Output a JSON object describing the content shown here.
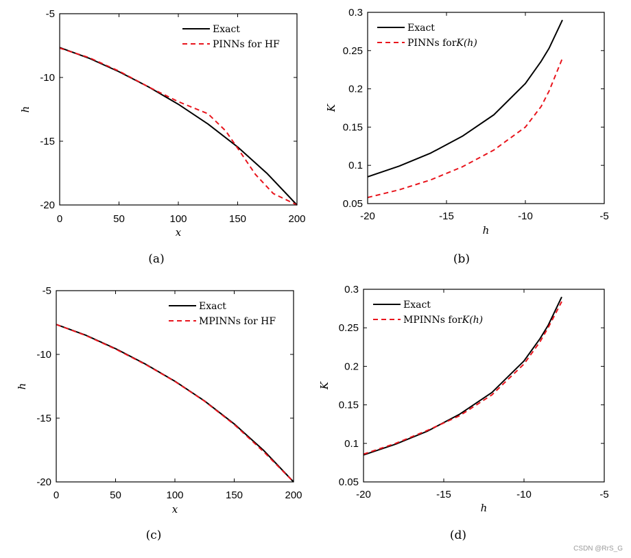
{
  "chart_data": [
    {
      "type": "line",
      "panel_label": "(a)",
      "xlabel": "x",
      "ylabel": "h",
      "xlim": [
        0,
        200
      ],
      "ylim": [
        -20,
        -5
      ],
      "xticks": [
        "0",
        "50",
        "100",
        "150",
        "200"
      ],
      "yticks": [
        "-5",
        "-10",
        "-15",
        "-20"
      ],
      "legend_position": "top-right",
      "series": [
        {
          "name": "Exact",
          "color": "#000000",
          "dash": "solid",
          "x": [
            0,
            25,
            50,
            75,
            100,
            125,
            150,
            175,
            200
          ],
          "y": [
            -7.65,
            -8.5,
            -9.55,
            -10.75,
            -12.1,
            -13.65,
            -15.45,
            -17.55,
            -20.0
          ]
        },
        {
          "name": "PINNs for HF",
          "color": "#e8141c",
          "dash": "dashed",
          "x": [
            0,
            25,
            50,
            75,
            100,
            125,
            140,
            150,
            165,
            180,
            200
          ],
          "y": [
            -7.7,
            -8.45,
            -9.5,
            -10.75,
            -11.9,
            -12.85,
            -14.2,
            -15.55,
            -17.6,
            -19.1,
            -20.0
          ]
        }
      ]
    },
    {
      "type": "line",
      "panel_label": "(b)",
      "xlabel": "h",
      "ylabel": "K",
      "xlim": [
        -20,
        -5
      ],
      "ylim": [
        0.05,
        0.3
      ],
      "xticks": [
        "-20",
        "-15",
        "-10",
        "-5"
      ],
      "yticks": [
        "0.3",
        "0.25",
        "0.2",
        "0.15",
        "0.1",
        "0.05"
      ],
      "legend_position": "top-left",
      "series": [
        {
          "name": "Exact",
          "color": "#000000",
          "dash": "solid",
          "x": [
            -20,
            -18,
            -16,
            -14,
            -12,
            -10,
            -9,
            -8.5,
            -7.65
          ],
          "y": [
            0.085,
            0.099,
            0.116,
            0.138,
            0.166,
            0.207,
            0.236,
            0.253,
            0.29
          ]
        },
        {
          "name": "PINNs for",
          "name_math": "K(h)",
          "color": "#e8141c",
          "dash": "dashed",
          "x": [
            -20,
            -18,
            -16,
            -14,
            -12,
            -10,
            -9,
            -8.5,
            -7.65
          ],
          "y": [
            0.058,
            0.068,
            0.081,
            0.098,
            0.12,
            0.15,
            0.177,
            0.197,
            0.24
          ]
        }
      ]
    },
    {
      "type": "line",
      "panel_label": "(c)",
      "xlabel": "x",
      "ylabel": "h",
      "xlim": [
        0,
        200
      ],
      "ylim": [
        -20,
        -5
      ],
      "xticks": [
        "0",
        "50",
        "100",
        "150",
        "200"
      ],
      "yticks": [
        "-5",
        "-10",
        "-15",
        "-20"
      ],
      "legend_position": "top-right",
      "series": [
        {
          "name": "Exact",
          "color": "#000000",
          "dash": "solid",
          "x": [
            0,
            25,
            50,
            75,
            100,
            125,
            150,
            175,
            200
          ],
          "y": [
            -7.65,
            -8.5,
            -9.55,
            -10.75,
            -12.1,
            -13.65,
            -15.45,
            -17.55,
            -20.0
          ]
        },
        {
          "name": "MPINNs for HF",
          "color": "#e8141c",
          "dash": "dashed",
          "x": [
            0,
            25,
            50,
            75,
            100,
            125,
            150,
            175,
            200
          ],
          "y": [
            -7.65,
            -8.52,
            -9.58,
            -10.78,
            -12.12,
            -13.67,
            -15.5,
            -17.65,
            -20.0
          ]
        }
      ]
    },
    {
      "type": "line",
      "panel_label": "(d)",
      "xlabel": "h",
      "ylabel": "K",
      "xlim": [
        -20,
        -5
      ],
      "ylim": [
        0.05,
        0.3
      ],
      "xticks": [
        "-20",
        "-15",
        "-10",
        "-5"
      ],
      "yticks": [
        "0.3",
        "0.25",
        "0.2",
        "0.15",
        "0.1",
        "0.05"
      ],
      "legend_position": "top-left",
      "series": [
        {
          "name": "Exact",
          "color": "#000000",
          "dash": "solid",
          "x": [
            -20,
            -18,
            -16,
            -14,
            -12,
            -10,
            -9,
            -8.5,
            -7.65
          ],
          "y": [
            0.085,
            0.099,
            0.116,
            0.138,
            0.166,
            0.207,
            0.236,
            0.253,
            0.29
          ]
        },
        {
          "name": "MPINNs for",
          "name_math": "K(h)",
          "color": "#e8141c",
          "dash": "dashed",
          "x": [
            -20,
            -18,
            -16,
            -14,
            -12,
            -10,
            -9,
            -8.5,
            -7.65
          ],
          "y": [
            0.086,
            0.1,
            0.117,
            0.136,
            0.163,
            0.203,
            0.232,
            0.25,
            0.284
          ]
        }
      ]
    }
  ],
  "watermark": "CSDN @RrS_G"
}
